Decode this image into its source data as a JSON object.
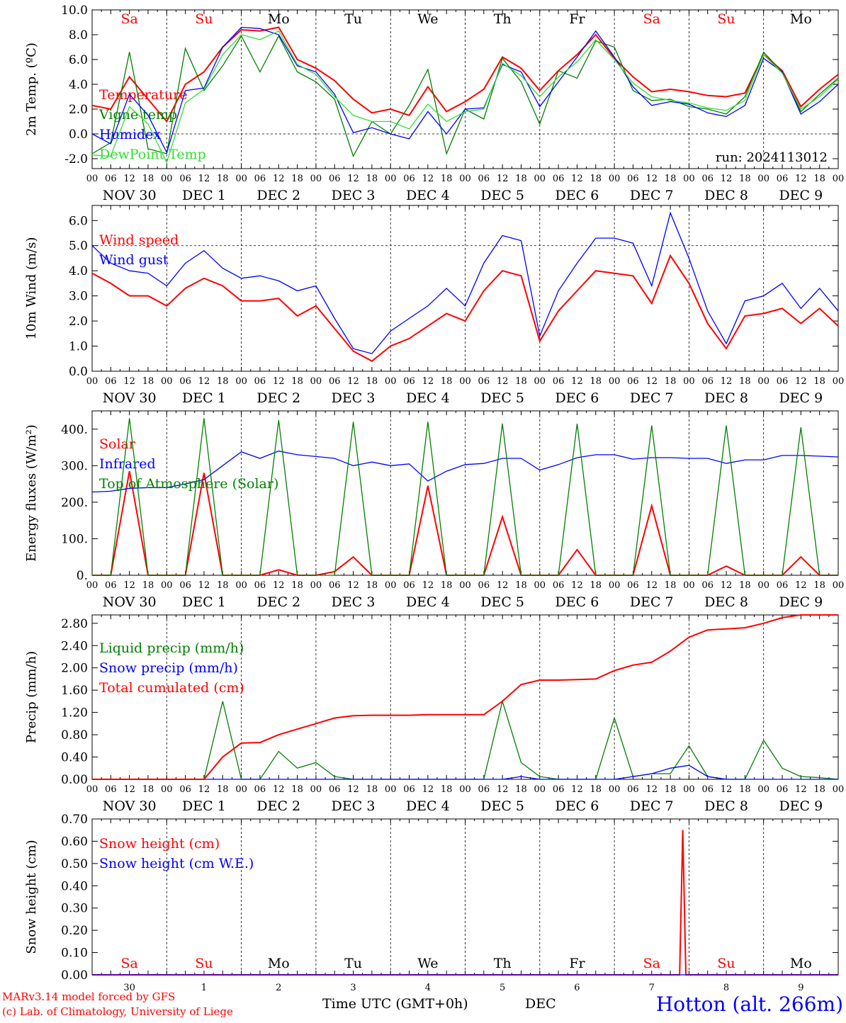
{
  "colors": {
    "red": "#ff0000",
    "green": "#008000",
    "blue": "#0000ff",
    "lightgreen": "#33dd33",
    "black": "#000000"
  },
  "days": [
    "Sa",
    "Su",
    "Mo",
    "Tu",
    "We",
    "Th",
    "Fr",
    "Sa",
    "Su",
    "Mo"
  ],
  "weekend_flags": [
    true,
    true,
    false,
    false,
    false,
    false,
    false,
    true,
    true,
    false
  ],
  "date_labels": [
    "NOV 30",
    "DEC 1",
    "DEC 2",
    "DEC 3",
    "DEC 4",
    "DEC 5",
    "DEC 6",
    "DEC 7",
    "DEC 8",
    "DEC 9"
  ],
  "hour_labels": [
    "00",
    "06",
    "12",
    "18"
  ],
  "hour_end_label": "00",
  "bottom_day_numbers": [
    "30",
    "1",
    "2",
    "3",
    "4",
    "5",
    "6",
    "7",
    "8",
    "9"
  ],
  "footer": {
    "model": "MARv3.14 model forced by GFS",
    "copyright": "(c) Lab. of Climatology, University of Liege",
    "time_axis": "Time UTC (GMT+0h)",
    "month": "DEC",
    "station": "Hotton (alt. 266m)"
  },
  "chart_data": [
    {
      "type": "line",
      "ylabel": "2m Temp. (ºC)",
      "ylim": [
        -2.8,
        10.0
      ],
      "yticks": [
        "-2.0",
        "0.0",
        "2.0",
        "4.0",
        "6.0",
        "8.0",
        "10.0"
      ],
      "ref_lines": [
        0.0
      ],
      "run_label": "run: 2024113012",
      "x_hours": [
        0,
        6,
        12,
        18,
        24,
        30,
        36,
        42,
        48,
        54,
        60,
        66,
        72,
        78,
        84,
        90,
        96,
        102,
        108,
        114,
        120,
        126,
        132,
        138,
        144,
        150,
        156,
        162,
        168,
        174,
        180,
        186,
        192,
        198,
        204,
        210,
        216,
        222,
        228,
        234,
        240
      ],
      "series": [
        {
          "name": "Temperature",
          "color": "#ff0000",
          "values": [
            2.3,
            2.0,
            4.6,
            2.8,
            1.0,
            4.0,
            5.0,
            7.0,
            8.4,
            8.3,
            8.6,
            6.0,
            5.3,
            4.3,
            2.8,
            1.7,
            2.0,
            1.5,
            3.8,
            1.8,
            2.6,
            3.6,
            6.2,
            5.3,
            3.5,
            5.1,
            6.4,
            8.0,
            6.1,
            4.6,
            3.4,
            3.6,
            3.4,
            3.1,
            3.0,
            3.3,
            6.4,
            5.1,
            2.2,
            3.6,
            4.8
          ]
        },
        {
          "name": "Vigne temp",
          "color": "#008000",
          "values": [
            -1.6,
            -0.7,
            6.6,
            -1.2,
            -1.6,
            6.9,
            3.5,
            5.5,
            7.9,
            5.0,
            7.9,
            5.0,
            4.2,
            2.8,
            -1.8,
            1.0,
            0.0,
            2.3,
            5.2,
            -1.6,
            2.0,
            1.2,
            6.1,
            4.2,
            0.8,
            5.1,
            4.5,
            7.5,
            7.0,
            3.5,
            2.7,
            2.8,
            2.2,
            2.0,
            1.6,
            3.0,
            6.6,
            5.0,
            1.8,
            3.2,
            4.5
          ]
        },
        {
          "name": "Humidex",
          "color": "#0000ff",
          "values": [
            0.0,
            -0.8,
            3.2,
            1.5,
            -1.5,
            3.5,
            3.7,
            7.0,
            8.6,
            8.5,
            8.0,
            5.5,
            5.0,
            3.2,
            0.1,
            0.5,
            0.0,
            -0.4,
            1.8,
            0.0,
            2.0,
            2.1,
            5.6,
            5.0,
            2.2,
            4.2,
            6.2,
            8.3,
            6.2,
            3.8,
            2.3,
            2.6,
            2.4,
            1.7,
            1.4,
            2.3,
            6.1,
            5.0,
            1.6,
            2.6,
            4.0
          ]
        },
        {
          "name": "DewPoint Temp",
          "color": "#33dd33",
          "values": [
            -1.7,
            -1.8,
            2.2,
            0.8,
            -2.3,
            2.5,
            3.6,
            6.4,
            8.0,
            7.6,
            8.3,
            5.6,
            4.8,
            3.0,
            1.5,
            1.0,
            1.0,
            0.4,
            2.4,
            1.0,
            1.8,
            2.0,
            5.7,
            4.7,
            3.0,
            4.6,
            5.8,
            7.6,
            6.0,
            4.1,
            3.0,
            2.7,
            2.5,
            2.1,
            1.9,
            2.7,
            6.4,
            4.9,
            2.0,
            3.0,
            4.4
          ]
        }
      ]
    },
    {
      "type": "line",
      "ylabel": "10m Wind (m/s)",
      "ylim": [
        0.0,
        6.6
      ],
      "yticks": [
        "0.0",
        "1.0",
        "2.0",
        "3.0",
        "4.0",
        "5.0",
        "6.0"
      ],
      "ref_lines": [
        5.0
      ],
      "x_hours": [
        0,
        6,
        12,
        18,
        24,
        30,
        36,
        42,
        48,
        54,
        60,
        66,
        72,
        78,
        84,
        90,
        96,
        102,
        108,
        114,
        120,
        126,
        132,
        138,
        144,
        150,
        156,
        162,
        168,
        174,
        180,
        186,
        192,
        198,
        204,
        210,
        216,
        222,
        228,
        234,
        240
      ],
      "series": [
        {
          "name": "Wind speed",
          "color": "#ff0000",
          "values": [
            3.9,
            3.5,
            3.0,
            3.0,
            2.6,
            3.3,
            3.7,
            3.4,
            2.8,
            2.8,
            2.9,
            2.2,
            2.6,
            1.7,
            0.8,
            0.4,
            1.0,
            1.3,
            1.8,
            2.3,
            2.0,
            3.2,
            4.0,
            3.8,
            1.2,
            2.4,
            3.2,
            4.0,
            3.9,
            3.8,
            2.7,
            4.6,
            3.5,
            1.9,
            0.9,
            2.2,
            2.3,
            2.5,
            1.9,
            2.5,
            1.8
          ]
        },
        {
          "name": "Wind gust",
          "color": "#0000ff",
          "values": [
            5.0,
            4.3,
            4.0,
            3.9,
            3.4,
            4.3,
            4.8,
            4.1,
            3.7,
            3.8,
            3.6,
            3.2,
            3.4,
            2.1,
            0.9,
            0.7,
            1.6,
            2.1,
            2.6,
            3.3,
            2.6,
            4.3,
            5.4,
            5.2,
            1.4,
            3.2,
            4.3,
            5.3,
            5.3,
            5.1,
            3.4,
            6.3,
            4.5,
            2.4,
            1.1,
            2.8,
            3.0,
            3.5,
            2.5,
            3.3,
            2.4
          ]
        }
      ]
    },
    {
      "type": "line",
      "ylabel": "Energy fluxes (W/m²)",
      "ylim": [
        0,
        450
      ],
      "yticks": [
        "0.",
        "100.",
        "200.",
        "300.",
        "400."
      ],
      "x_hours": [
        0,
        6,
        12,
        18,
        24,
        30,
        36,
        42,
        48,
        54,
        60,
        66,
        72,
        78,
        84,
        90,
        96,
        102,
        108,
        114,
        120,
        126,
        132,
        138,
        144,
        150,
        156,
        162,
        168,
        174,
        180,
        186,
        192,
        198,
        204,
        210,
        216,
        222,
        228,
        234,
        240
      ],
      "series": [
        {
          "name": "Solar",
          "color": "#ff0000",
          "values": [
            0,
            0,
            285,
            0,
            0,
            0,
            280,
            0,
            0,
            0,
            15,
            0,
            0,
            10,
            50,
            0,
            0,
            0,
            245,
            0,
            0,
            0,
            160,
            0,
            0,
            0,
            70,
            0,
            0,
            0,
            190,
            0,
            0,
            0,
            25,
            0,
            0,
            0,
            50,
            0,
            0
          ]
        },
        {
          "name": "Infrared",
          "color": "#0000ff",
          "values": [
            228,
            230,
            238,
            240,
            240,
            250,
            262,
            300,
            338,
            320,
            340,
            330,
            325,
            320,
            300,
            310,
            300,
            305,
            258,
            285,
            303,
            306,
            320,
            320,
            288,
            303,
            322,
            330,
            330,
            318,
            322,
            322,
            320,
            320,
            306,
            316,
            316,
            328,
            328,
            326,
            324
          ]
        },
        {
          "name": "Top of Atmosphere (Solar)",
          "color": "#008000",
          "values": [
            0,
            0,
            430,
            0,
            0,
            0,
            430,
            0,
            0,
            0,
            425,
            0,
            0,
            0,
            420,
            0,
            0,
            0,
            420,
            0,
            0,
            0,
            415,
            0,
            0,
            0,
            415,
            0,
            0,
            0,
            410,
            0,
            0,
            0,
            410,
            0,
            0,
            0,
            405,
            0,
            0
          ]
        }
      ]
    },
    {
      "type": "line",
      "ylabel": "Precip (mm/h)",
      "ylim": [
        0.0,
        2.95
      ],
      "yticks": [
        "0.00",
        "0.40",
        "0.80",
        "1.20",
        "1.60",
        "2.00",
        "2.40",
        "2.80"
      ],
      "x_hours": [
        0,
        6,
        12,
        18,
        24,
        30,
        36,
        42,
        48,
        54,
        60,
        66,
        72,
        78,
        84,
        90,
        96,
        102,
        108,
        114,
        120,
        126,
        132,
        138,
        144,
        150,
        156,
        162,
        168,
        174,
        180,
        186,
        192,
        198,
        204,
        210,
        216,
        222,
        228,
        234,
        240
      ],
      "series": [
        {
          "name": "Liquid precip (mm/h)",
          "color": "#008000",
          "values": [
            0,
            0,
            0,
            0,
            0,
            0,
            0,
            1.4,
            0,
            0,
            0.5,
            0.2,
            0.3,
            0.05,
            0,
            0,
            0,
            0,
            0,
            0,
            0,
            0,
            1.4,
            0.3,
            0.05,
            0,
            0,
            0,
            1.1,
            0.05,
            0.1,
            0.1,
            0.6,
            0.05,
            0,
            0,
            0.7,
            0.2,
            0.05,
            0.03,
            0
          ]
        },
        {
          "name": "Snow precip (mm/h)",
          "color": "#0000ff",
          "values": [
            0,
            0,
            0,
            0,
            0,
            0,
            0,
            0,
            0,
            0,
            0,
            0,
            0,
            0,
            0,
            0,
            0,
            0,
            0,
            0,
            0,
            0,
            0,
            0.05,
            0,
            0,
            0,
            0,
            0,
            0.05,
            0.1,
            0.2,
            0.25,
            0.05,
            0,
            0,
            0,
            0,
            0,
            0,
            0
          ]
        },
        {
          "name": "Total cumulated (cm)",
          "color": "#ff0000",
          "values": [
            0,
            0,
            0,
            0,
            0,
            0,
            0,
            0.4,
            0.65,
            0.66,
            0.8,
            0.9,
            1.0,
            1.1,
            1.14,
            1.15,
            1.15,
            1.15,
            1.16,
            1.16,
            1.16,
            1.16,
            1.4,
            1.7,
            1.78,
            1.78,
            1.79,
            1.8,
            1.95,
            2.05,
            2.1,
            2.3,
            2.55,
            2.68,
            2.7,
            2.72,
            2.8,
            2.9,
            2.97,
            2.99,
            3.0
          ]
        }
      ]
    },
    {
      "type": "line",
      "ylabel": "Snow height (cm)",
      "ylim": [
        0.0,
        0.7
      ],
      "yticks": [
        "0.00",
        "0.10",
        "0.20",
        "0.30",
        "0.40",
        "0.50",
        "0.60",
        "0.70"
      ],
      "x_hours": [
        0,
        12,
        24,
        36,
        48,
        60,
        72,
        84,
        96,
        108,
        120,
        132,
        144,
        156,
        168,
        180,
        186,
        189,
        190,
        191,
        192,
        198,
        204,
        216,
        228,
        240
      ],
      "series": [
        {
          "name": "Snow height (cm)",
          "color": "#ff0000",
          "values": [
            0,
            0,
            0,
            0,
            0,
            0,
            0,
            0,
            0,
            0,
            0,
            0,
            0,
            0,
            0,
            0,
            0,
            0,
            0.65,
            0,
            0,
            0,
            0,
            0,
            0,
            0
          ]
        },
        {
          "name": "Snow height (cm W.E.)",
          "color": "#0000ff",
          "values": [
            0,
            0,
            0,
            0,
            0,
            0,
            0,
            0,
            0,
            0,
            0,
            0,
            0,
            0,
            0,
            0,
            0,
            0,
            0,
            0,
            0,
            0,
            0,
            0,
            0,
            0
          ]
        }
      ]
    }
  ]
}
